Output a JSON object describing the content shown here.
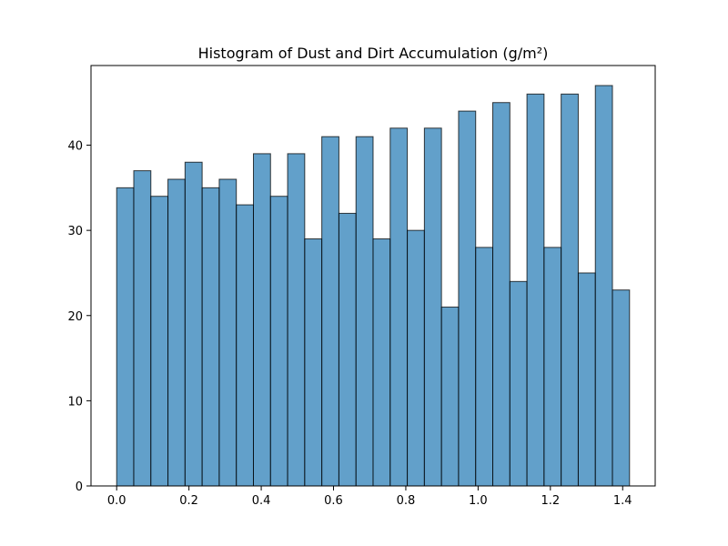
{
  "chart_data": {
    "type": "bar",
    "title": "Histogram of Dust and Dirt Accumulation (g/m²)",
    "xlabel": "",
    "ylabel": "",
    "bin_start": 0.0,
    "bin_width": 0.0473,
    "values": [
      35,
      37,
      34,
      36,
      38,
      35,
      36,
      33,
      39,
      34,
      39,
      29,
      41,
      32,
      41,
      29,
      42,
      30,
      42,
      21,
      44,
      28,
      45,
      24,
      46,
      28,
      46,
      25,
      47,
      23
    ],
    "x_ticks": [
      {
        "value": 0.0,
        "label": "0.0"
      },
      {
        "value": 0.2,
        "label": "0.2"
      },
      {
        "value": 0.4,
        "label": "0.4"
      },
      {
        "value": 0.6,
        "label": "0.6"
      },
      {
        "value": 0.8,
        "label": "0.8"
      },
      {
        "value": 1.0,
        "label": "1.0"
      },
      {
        "value": 1.2,
        "label": "1.2"
      },
      {
        "value": 1.4,
        "label": "1.4"
      }
    ],
    "y_ticks": [
      {
        "value": 0,
        "label": "0"
      },
      {
        "value": 10,
        "label": "10"
      },
      {
        "value": 20,
        "label": "20"
      },
      {
        "value": 30,
        "label": "30"
      },
      {
        "value": 40,
        "label": "40"
      }
    ],
    "xlim": [
      -0.071,
      1.49
    ],
    "ylim": [
      0,
      49.35
    ],
    "grid": false,
    "legend": "none",
    "colors": {
      "bar_fill": "#1f77b4",
      "bar_opacity": 0.7,
      "bar_edge": "#000000"
    }
  }
}
